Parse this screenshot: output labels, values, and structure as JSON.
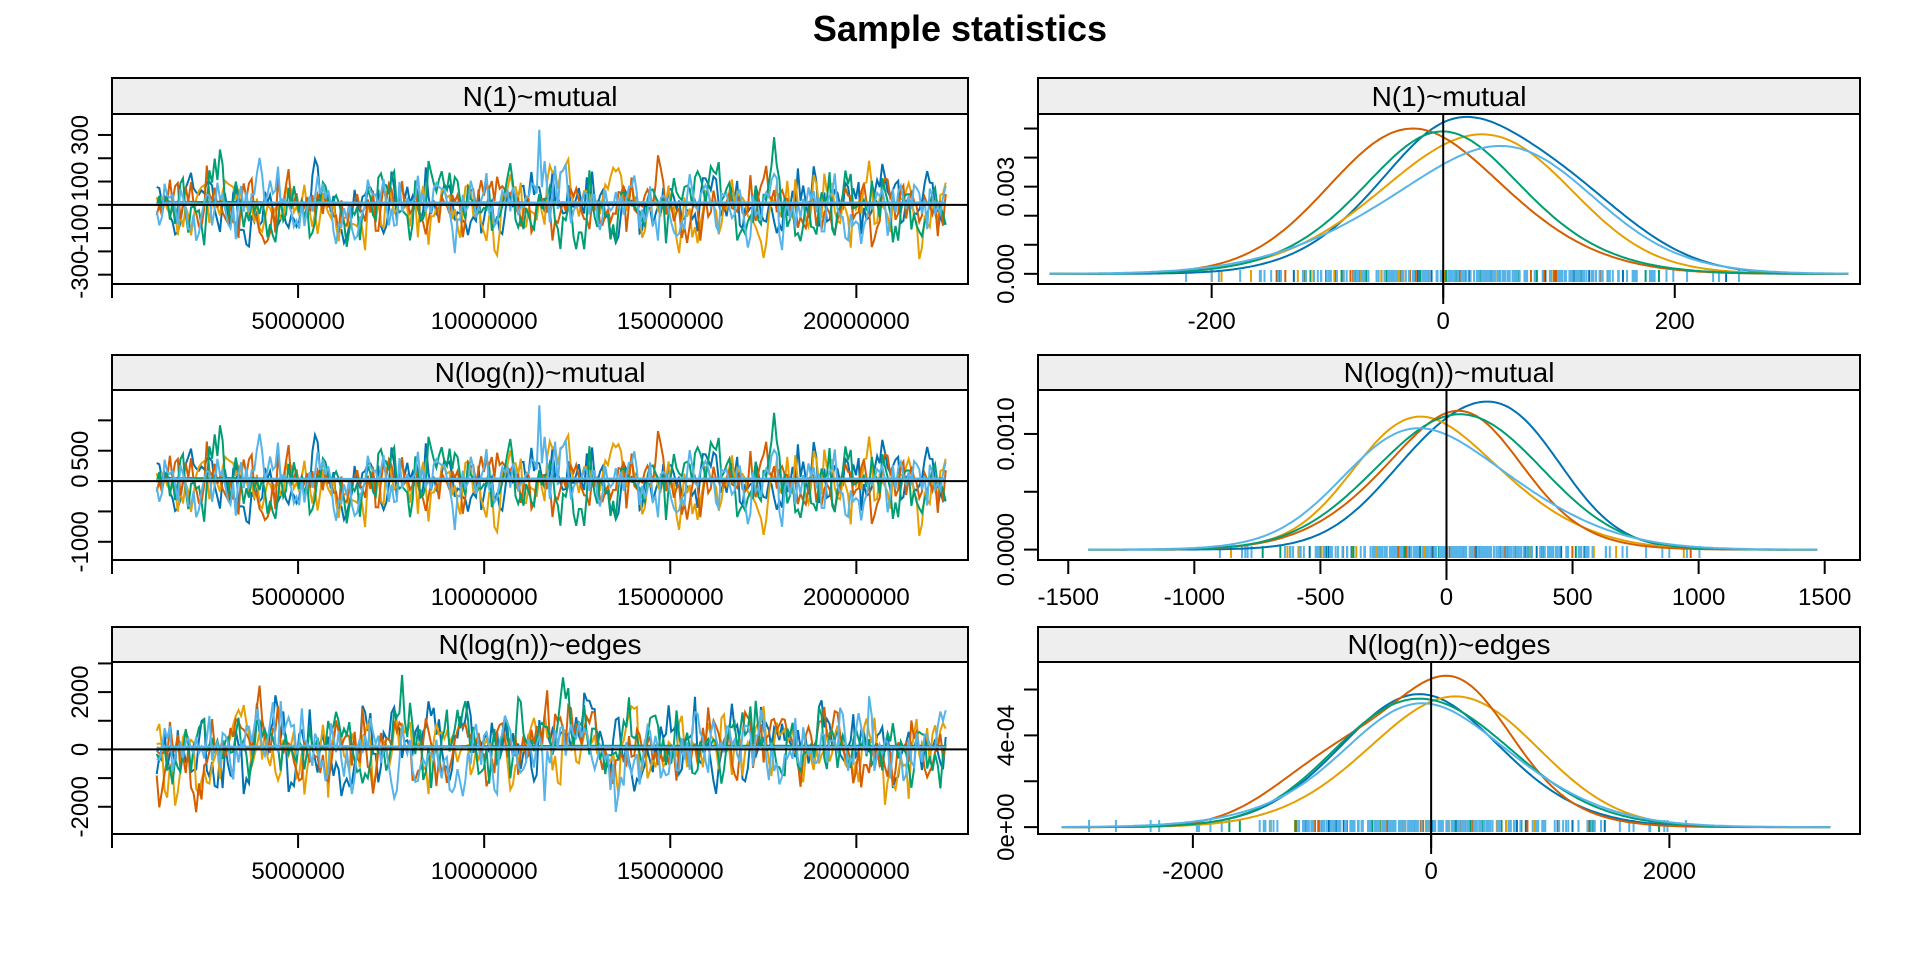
{
  "chart_data": {
    "type": "line",
    "title": "Sample statistics",
    "chain_colors": [
      "#0072B2",
      "#E69F00",
      "#D55E00",
      "#009E73",
      "#56B4E9"
    ],
    "panels": [
      {
        "kind": "trace",
        "strip": "N(1)~mutual",
        "xlim": [
          0,
          23000000
        ],
        "ylim": [
          -340,
          390
        ],
        "x_ticks": [
          0,
          5000000,
          10000000,
          15000000,
          20000000
        ],
        "x_tick_labels": [
          "",
          "5000000",
          "10000000",
          "15000000",
          "20000000"
        ],
        "y_ticks": [
          -300,
          -200,
          -100,
          0,
          100,
          200,
          300
        ],
        "y_tick_labels": [
          "-300",
          "",
          "-100",
          "",
          "100",
          "",
          "300"
        ],
        "hline": 0,
        "x_start": 1200000,
        "x_end": 22400000,
        "scale": 80,
        "seed": 11
      },
      {
        "kind": "density",
        "strip": "N(1)~mutual",
        "xlim": [
          -350,
          360
        ],
        "ylim": [
          -0.00035,
          0.0055
        ],
        "x_ticks": [
          -200,
          0,
          200
        ],
        "x_tick_labels": [
          "-200",
          "0",
          "200"
        ],
        "y_ticks": [
          0.0,
          0.001,
          0.002,
          0.003,
          0.004,
          0.005
        ],
        "y_tick_labels": [
          "0.000",
          "",
          "",
          "0.003",
          "",
          ""
        ],
        "vline": 0,
        "support": [
          -340,
          350
        ],
        "series": [
          {
            "chain": 1,
            "mean": 25,
            "sd": 80,
            "peak": 0.0054
          },
          {
            "chain": 2,
            "mean": 5,
            "sd": 88,
            "peak": 0.0048
          },
          {
            "chain": 3,
            "mean": -5,
            "sd": 85,
            "peak": 0.005
          },
          {
            "chain": 4,
            "mean": 2,
            "sd": 86,
            "peak": 0.0049
          },
          {
            "chain": 5,
            "mean": 10,
            "sd": 98,
            "peak": 0.0044
          }
        ]
      },
      {
        "kind": "trace",
        "strip": "N(log(n))~mutual",
        "xlim": [
          0,
          23000000
        ],
        "ylim": [
          -1300,
          1500
        ],
        "x_ticks": [
          0,
          5000000,
          10000000,
          15000000,
          20000000
        ],
        "x_tick_labels": [
          "",
          "5000000",
          "10000000",
          "15000000",
          "20000000"
        ],
        "y_ticks": [
          -1000,
          -500,
          0,
          500,
          1000
        ],
        "y_tick_labels": [
          "-1000",
          "",
          "0",
          "500",
          ""
        ],
        "hline": 0,
        "x_start": 1200000,
        "x_end": 22400000,
        "scale": 310,
        "seed": 11
      },
      {
        "kind": "density",
        "strip": "N(log(n))~mutual",
        "xlim": [
          -1620,
          1640
        ],
        "ylim": [
          -9e-05,
          0.00138
        ],
        "x_ticks": [
          -1500,
          -1000,
          -500,
          0,
          500,
          1000,
          1500
        ],
        "x_tick_labels": [
          "-1500",
          "-1000",
          "-500",
          "0",
          "500",
          "1000",
          "1500"
        ],
        "y_ticks": [
          0.0,
          0.0005,
          0.001
        ],
        "y_tick_labels": [
          "0.0000",
          "",
          "0.0010"
        ],
        "vline": 0,
        "support": [
          -1420,
          1470
        ],
        "series": [
          {
            "chain": 1,
            "mean": 100,
            "sd": 300,
            "peak": 0.00128
          },
          {
            "chain": 2,
            "mean": 20,
            "sd": 335,
            "peak": 0.00115
          },
          {
            "chain": 3,
            "mean": -20,
            "sd": 325,
            "peak": 0.0012
          },
          {
            "chain": 4,
            "mean": 10,
            "sd": 330,
            "peak": 0.00117
          },
          {
            "chain": 5,
            "mean": 40,
            "sd": 375,
            "peak": 0.00105
          }
        ]
      },
      {
        "kind": "trace",
        "strip": "N(log(n))~edges",
        "xlim": [
          0,
          23000000
        ],
        "ylim": [
          -2950,
          3050
        ],
        "x_ticks": [
          0,
          5000000,
          10000000,
          15000000,
          20000000
        ],
        "x_tick_labels": [
          "",
          "5000000",
          "10000000",
          "15000000",
          "20000000"
        ],
        "y_ticks": [
          -2000,
          -1000,
          0,
          1000,
          2000,
          3000
        ],
        "y_tick_labels": [
          "-2000",
          "",
          "0",
          "",
          "2000",
          ""
        ],
        "hline": 0,
        "x_start": 1200000,
        "x_end": 22400000,
        "scale": 750,
        "seed": 23
      },
      {
        "kind": "density",
        "strip": "N(log(n))~edges",
        "xlim": [
          -3300,
          3600
        ],
        "ylim": [
          -3e-05,
          0.00072
        ],
        "x_ticks": [
          -2000,
          0,
          2000
        ],
        "x_tick_labels": [
          "-2000",
          "0",
          "2000"
        ],
        "y_ticks": [
          0,
          0.0002,
          0.0004,
          0.0006
        ],
        "y_tick_labels": [
          "0e+00",
          "",
          "4e-04",
          ""
        ],
        "vline": 0,
        "support": [
          -3100,
          3350
        ],
        "series": [
          {
            "chain": 1,
            "mean": -20,
            "sd": 760,
            "peak": 0.00058
          },
          {
            "chain": 2,
            "mean": 30,
            "sd": 760,
            "peak": 0.00057
          },
          {
            "chain": 3,
            "mean": 0,
            "sd": 680,
            "peak": 0.00066
          },
          {
            "chain": 4,
            "mean": 60,
            "sd": 790,
            "peak": 0.00056
          },
          {
            "chain": 5,
            "mean": -40,
            "sd": 880,
            "peak": 0.00054
          }
        ]
      }
    ]
  }
}
